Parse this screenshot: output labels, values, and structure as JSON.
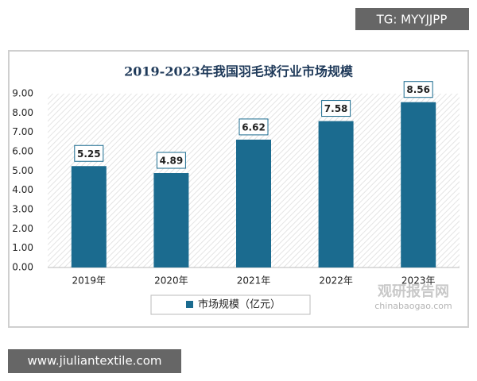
{
  "chart_data": {
    "type": "bar",
    "title": "2019-2023年我国羽毛球行业市场规模",
    "categories": [
      "2019年",
      "2020年",
      "2021年",
      "2022年",
      "2023年"
    ],
    "series": [
      {
        "name": "市场规模（亿元）",
        "color": "#1b6b8f",
        "values": [
          5.25,
          4.89,
          6.62,
          7.58,
          8.56
        ]
      }
    ],
    "ylim": [
      0,
      9
    ],
    "yticks": [
      {
        "value": 0,
        "label": "0.00"
      },
      {
        "value": 1,
        "label": "1.00"
      },
      {
        "value": 2,
        "label": "2.00"
      },
      {
        "value": 3,
        "label": "3.00"
      },
      {
        "value": 4,
        "label": "4.00"
      },
      {
        "value": 5,
        "label": "5.00"
      },
      {
        "value": 6,
        "label": "6.00"
      },
      {
        "value": 7,
        "label": "7.00"
      },
      {
        "value": 8,
        "label": "8.00"
      },
      {
        "value": 9,
        "label": "9.00"
      }
    ],
    "grid": false,
    "legend": "bottom"
  },
  "overlays": {
    "top_tag": "TG: MYYJJPP",
    "bottom_tag": "www.jiuliantextile.com",
    "watermark": "观研报告网",
    "watermark_url": "chinabaogao.com"
  }
}
